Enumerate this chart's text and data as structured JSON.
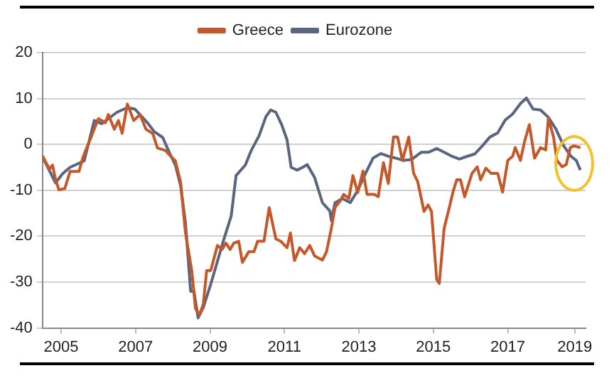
{
  "chart_data": {
    "type": "line",
    "xlim": [
      2005,
      2019.59
    ],
    "xticks": [
      {
        "value": 2005.5,
        "label": "2005"
      },
      {
        "value": 2007.5,
        "label": "2007"
      },
      {
        "value": 2009.5,
        "label": "2009"
      },
      {
        "value": 2011.5,
        "label": "2011"
      },
      {
        "value": 2013.5,
        "label": "2013"
      },
      {
        "value": 2015.5,
        "label": "2015"
      },
      {
        "value": 2017.5,
        "label": "2017"
      },
      {
        "value": 2019.3,
        "label": "2019"
      }
    ],
    "ylim": [
      -40,
      20
    ],
    "yticks": [
      -40,
      -30,
      -20,
      -10,
      0,
      10,
      20
    ],
    "grid": "y",
    "legend": "top",
    "marker": "none",
    "line_style": "solid",
    "series": [
      {
        "name": "Greece",
        "color": "#c5582b",
        "x": [
          2005.0,
          2005.19,
          2005.27,
          2005.34,
          2005.44,
          2005.6,
          2005.74,
          2005.98,
          2006.09,
          2006.32,
          2006.5,
          2006.69,
          2006.77,
          2006.93,
          2007.04,
          2007.14,
          2007.28,
          2007.45,
          2007.62,
          2007.78,
          2007.96,
          2008.09,
          2008.3,
          2008.46,
          2008.57,
          2008.71,
          2008.84,
          2009.01,
          2009.11,
          2009.22,
          2009.32,
          2009.41,
          2009.52,
          2009.7,
          2009.82,
          2009.93,
          2010.04,
          2010.14,
          2010.27,
          2010.37,
          2010.54,
          2010.68,
          2010.78,
          2010.95,
          2011.09,
          2011.27,
          2011.4,
          2011.57,
          2011.66,
          2011.77,
          2011.91,
          2012.04,
          2012.18,
          2012.31,
          2012.52,
          2012.63,
          2012.76,
          2012.86,
          2013.0,
          2013.09,
          2013.23,
          2013.34,
          2013.47,
          2013.61,
          2013.72,
          2013.91,
          2014.02,
          2014.16,
          2014.29,
          2014.43,
          2014.54,
          2014.67,
          2014.84,
          2014.97,
          2015.08,
          2015.25,
          2015.36,
          2015.45,
          2015.59,
          2015.66,
          2015.79,
          2015.93,
          2016.04,
          2016.13,
          2016.23,
          2016.34,
          2016.54,
          2016.68,
          2016.77,
          2016.91,
          2017.05,
          2017.23,
          2017.36,
          2017.5,
          2017.63,
          2017.7,
          2017.84,
          2017.95,
          2018.08,
          2018.22,
          2018.38,
          2018.52,
          2018.59,
          2018.73,
          2018.82,
          2018.96,
          2019.07,
          2019.18,
          2019.27,
          2019.45
        ],
        "values": [
          -2.5,
          -5.4,
          -4.5,
          -7.3,
          -9.9,
          -9.6,
          -5.9,
          -5.9,
          -2.7,
          1.9,
          5.6,
          4.7,
          6.5,
          3.3,
          5.2,
          2.4,
          8.8,
          5.2,
          6.5,
          3.3,
          2.4,
          -0.8,
          -1.3,
          -2.7,
          -3.6,
          -8.2,
          -19.2,
          -27.5,
          -35.8,
          -37.1,
          -34.8,
          -27.5,
          -27.5,
          -22,
          -22.9,
          -21.5,
          -22.9,
          -21.5,
          -21.1,
          -25.7,
          -23.4,
          -23.4,
          -21.1,
          -21.1,
          -13.8,
          -20.6,
          -21.1,
          -22.5,
          -19.3,
          -25.3,
          -22.5,
          -23.8,
          -22,
          -24.3,
          -25.2,
          -23.4,
          -18.3,
          -13.7,
          -12.3,
          -10.9,
          -11.8,
          -6.8,
          -10.5,
          -5.8,
          -10.9,
          -10.9,
          -11.4,
          -4,
          -8.5,
          1.6,
          1.6,
          -3.5,
          1.6,
          -6.3,
          -8.1,
          -14.6,
          -13.2,
          -14.6,
          -29.4,
          -30.3,
          -18.3,
          -13.7,
          -10,
          -7.7,
          -7.7,
          -11.4,
          -6.3,
          -4.9,
          -7.7,
          -5.2,
          -6.3,
          -6.3,
          -10.4,
          -3.5,
          -2.6,
          -0.7,
          -3.5,
          0.6,
          4.3,
          -3,
          -0.7,
          -1.2,
          5.7,
          1.6,
          -3.5,
          -4.9,
          -4.4,
          -0.7,
          -0.3,
          -0.7
        ]
      },
      {
        "name": "Eurozone",
        "color": "#5b6580",
        "x": [
          2005.0,
          2005.35,
          2005.54,
          2005.74,
          2006.01,
          2006.12,
          2006.39,
          2006.59,
          2007.0,
          2007.28,
          2007.48,
          2007.82,
          2008.0,
          2008.23,
          2008.41,
          2008.57,
          2008.71,
          2008.84,
          2008.98,
          2009.07,
          2009.18,
          2009.32,
          2009.5,
          2009.66,
          2009.86,
          2010.07,
          2010.2,
          2010.45,
          2010.61,
          2010.82,
          2011.0,
          2011.13,
          2011.27,
          2011.43,
          2011.57,
          2011.68,
          2011.84,
          2011.99,
          2012.11,
          2012.31,
          2012.52,
          2012.72,
          2012.76,
          2012.86,
          2013.06,
          2013.27,
          2013.47,
          2013.68,
          2013.88,
          2014.09,
          2014.29,
          2014.5,
          2014.7,
          2014.91,
          2015.18,
          2015.38,
          2015.59,
          2015.79,
          2016.0,
          2016.2,
          2016.41,
          2016.61,
          2016.82,
          2017.02,
          2017.23,
          2017.43,
          2017.63,
          2017.84,
          2018.0,
          2018.18,
          2018.38,
          2018.59,
          2018.79,
          2019.0,
          2019.2,
          2019.34,
          2019.45
        ],
        "values": [
          -2.7,
          -8.4,
          -6.4,
          -5,
          -4,
          -3.6,
          5.2,
          4.5,
          7,
          8,
          7.7,
          4.7,
          2.8,
          1.5,
          -1.8,
          -4.5,
          -9,
          -17,
          -32,
          -32,
          -37.8,
          -35.5,
          -31,
          -26.6,
          -21,
          -15.6,
          -6.8,
          -4.5,
          -1.3,
          1.9,
          6,
          7.5,
          7,
          4.2,
          1,
          -5,
          -5.6,
          -5,
          -4.4,
          -7.2,
          -12.7,
          -14.5,
          -16.6,
          -12.7,
          -11.8,
          -12.7,
          -10,
          -6.3,
          -3,
          -2,
          -2.6,
          -3,
          -3.5,
          -3.3,
          -1.7,
          -1.7,
          -0.9,
          -1.7,
          -2.6,
          -3.2,
          -2.6,
          -2.1,
          -0.3,
          1.6,
          2.5,
          5.3,
          6.6,
          8.9,
          10.1,
          7.7,
          7.5,
          5.9,
          3.4,
          -0.3,
          -2.6,
          -3.5,
          -5.6
        ]
      }
    ]
  }
}
